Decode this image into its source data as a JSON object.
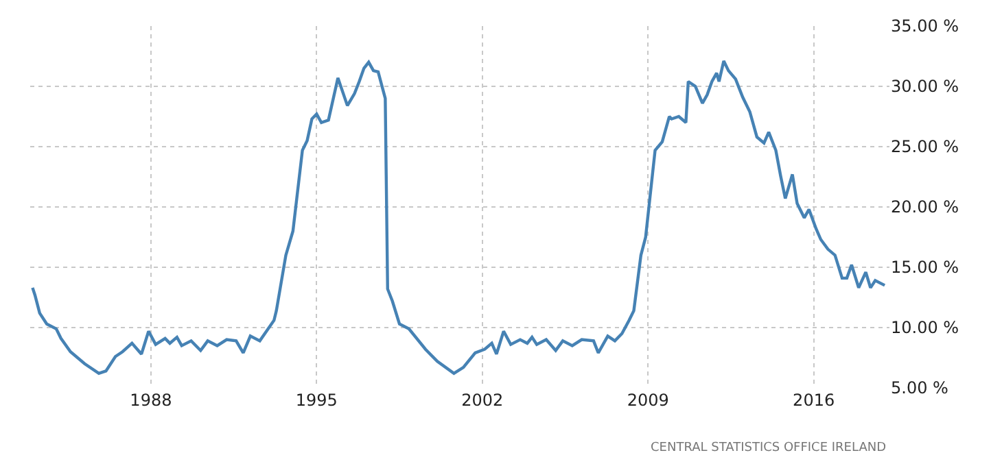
{
  "chart_data": {
    "type": "line",
    "x": [
      1983.0,
      1983.1,
      1983.3,
      1983.6,
      1984.0,
      1984.2,
      1984.6,
      1985.2,
      1985.8,
      1986.1,
      1986.5,
      1986.8,
      1987.2,
      1987.6,
      1987.9,
      1988.2,
      1988.6,
      1988.8,
      1989.1,
      1989.3,
      1989.7,
      1990.1,
      1990.4,
      1990.8,
      1991.2,
      1991.6,
      1991.9,
      1992.2,
      1992.6,
      1993.2,
      1993.3,
      1993.7,
      1994.0,
      1994.4,
      1994.6,
      1994.8,
      1995.0,
      1995.2,
      1995.5,
      1995.9,
      1996.3,
      1996.6,
      1996.8,
      1997.0,
      1997.2,
      1997.4,
      1997.6,
      1997.9,
      1998.0,
      1998.2,
      1998.5,
      1998.9,
      1999.6,
      2000.1,
      2000.8,
      2001.2,
      2001.7,
      2002.1,
      2002.4,
      2002.6,
      2002.9,
      2003.2,
      2003.6,
      2003.9,
      2004.1,
      2004.3,
      2004.7,
      2005.1,
      2005.4,
      2005.8,
      2006.2,
      2006.7,
      2006.9,
      2007.3,
      2007.6,
      2007.9,
      2008.2,
      2008.4,
      2008.7,
      2008.9,
      2009.3,
      2009.6,
      2009.9,
      2010.0,
      2010.3,
      2010.6,
      2010.7,
      2011.0,
      2011.3,
      2011.5,
      2011.7,
      2011.9,
      2012.0,
      2012.2,
      2012.4,
      2012.7,
      2013.0,
      2013.3,
      2013.6,
      2013.9,
      2014.1,
      2014.4,
      2014.6,
      2014.8,
      2015.1,
      2015.3,
      2015.6,
      2015.8,
      2016.1,
      2016.3,
      2016.6,
      2016.9,
      2017.2,
      2017.4,
      2017.6,
      2017.9,
      2018.2,
      2018.4,
      2018.6,
      2019.0
    ],
    "series": [
      {
        "color": "#4682b4",
        "values": [
          13.3,
          12.7,
          11.2,
          10.3,
          9.9,
          9.1,
          8.0,
          7.0,
          6.2,
          6.4,
          7.6,
          8.0,
          8.7,
          7.8,
          9.7,
          8.6,
          9.1,
          8.7,
          9.2,
          8.5,
          8.9,
          8.1,
          8.9,
          8.5,
          9.0,
          8.9,
          7.9,
          9.3,
          8.9,
          10.6,
          11.4,
          16.0,
          18.0,
          24.7,
          25.5,
          27.3,
          27.7,
          27.0,
          27.2,
          30.7,
          28.4,
          29.4,
          30.4,
          31.5,
          32.0,
          31.3,
          31.2,
          29.0,
          13.2,
          12.2,
          10.3,
          9.9,
          8.2,
          7.2,
          6.2,
          6.7,
          7.9,
          8.2,
          8.7,
          7.8,
          9.7,
          8.6,
          9.0,
          8.7,
          9.2,
          8.6,
          9.0,
          8.1,
          8.9,
          8.5,
          9.0,
          8.9,
          7.9,
          9.3,
          8.9,
          9.5,
          10.6,
          11.4,
          16.0,
          17.5,
          24.7,
          25.4,
          27.5,
          27.3,
          27.5,
          27.0,
          30.4,
          30.0,
          28.6,
          29.3,
          30.4,
          31.1,
          30.4,
          32.1,
          31.3,
          30.6,
          29.1,
          27.9,
          25.8,
          25.3,
          26.2,
          24.7,
          22.6,
          20.7,
          22.7,
          20.3,
          19.1,
          19.8,
          18.2,
          17.3,
          16.5,
          16.0,
          14.1,
          14.1,
          15.2,
          13.3,
          14.6,
          13.3,
          13.9,
          13.5
        ]
      }
    ],
    "xlim": [
      1982.9,
      2019.2
    ],
    "xticks": [
      1988,
      1995,
      2002,
      2009,
      2016
    ],
    "ylim": [
      5,
      35
    ],
    "yticks": [
      {
        "value": 5,
        "label": "5.00 %"
      },
      {
        "value": 10,
        "label": "10.00 %"
      },
      {
        "value": 15,
        "label": "15.00 %"
      },
      {
        "value": 20,
        "label": "20.00 %"
      },
      {
        "value": 25,
        "label": "25.00 %"
      },
      {
        "value": 30,
        "label": "30.00 %"
      },
      {
        "value": 35,
        "label": "35.00 %"
      }
    ],
    "grid": true,
    "line_style": "solid",
    "marker": "none",
    "annotations": [
      "CENTRAL STATISTICS OFFICE IRELAND"
    ]
  }
}
